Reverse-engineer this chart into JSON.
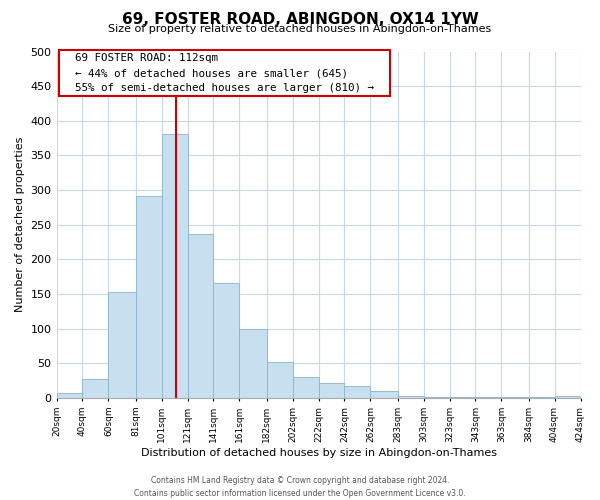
{
  "title": "69, FOSTER ROAD, ABINGDON, OX14 1YW",
  "subtitle": "Size of property relative to detached houses in Abingdon-on-Thames",
  "xlabel": "Distribution of detached houses by size in Abingdon-on-Thames",
  "ylabel": "Number of detached properties",
  "bar_edges": [
    20,
    40,
    60,
    81,
    101,
    121,
    141,
    161,
    182,
    202,
    222,
    242,
    262,
    283,
    303,
    323,
    343,
    363,
    384,
    404,
    424
  ],
  "bar_heights": [
    7,
    27,
    153,
    291,
    381,
    236,
    166,
    99,
    52,
    30,
    22,
    17,
    10,
    3,
    2,
    1,
    1,
    1,
    1,
    3
  ],
  "tick_labels": [
    "20sqm",
    "40sqm",
    "60sqm",
    "81sqm",
    "101sqm",
    "121sqm",
    "141sqm",
    "161sqm",
    "182sqm",
    "202sqm",
    "222sqm",
    "242sqm",
    "262sqm",
    "283sqm",
    "303sqm",
    "323sqm",
    "343sqm",
    "363sqm",
    "384sqm",
    "404sqm",
    "424sqm"
  ],
  "bar_color": "#c8dff0",
  "bar_edgecolor": "#8ab4cc",
  "vline_x": 112,
  "vline_color": "#cc0000",
  "ylim": [
    0,
    500
  ],
  "yticks": [
    0,
    50,
    100,
    150,
    200,
    250,
    300,
    350,
    400,
    450,
    500
  ],
  "annotation_title": "69 FOSTER ROAD: 112sqm",
  "annotation_line1": "← 44% of detached houses are smaller (645)",
  "annotation_line2": "55% of semi-detached houses are larger (810) →",
  "annotation_box_facecolor": "#ffffff",
  "annotation_box_edgecolor": "#cc0000",
  "footer_line1": "Contains HM Land Registry data © Crown copyright and database right 2024.",
  "footer_line2": "Contains public sector information licensed under the Open Government Licence v3.0.",
  "background_color": "#ffffff",
  "grid_color": "#c8d8e8"
}
